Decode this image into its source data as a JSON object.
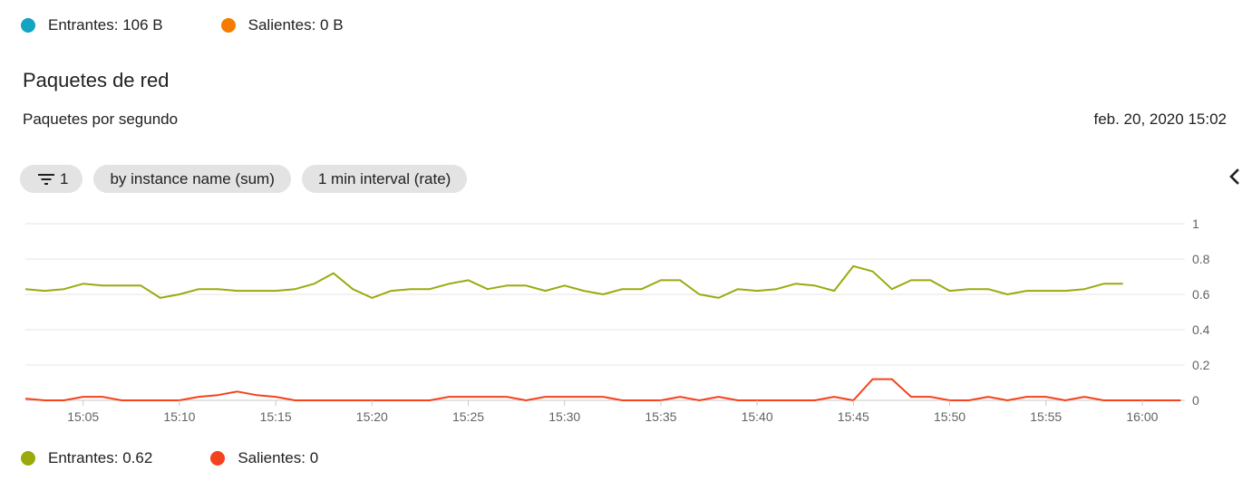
{
  "top_legend": {
    "items": [
      {
        "label": "Entrantes: 106 B",
        "color": "#12a4c1"
      },
      {
        "label": "Salientes: 0 B",
        "color": "#f57c00"
      }
    ]
  },
  "title": "Paquetes de red",
  "subtitle": "Paquetes por segundo",
  "timestamp": "feb. 20, 2020 15:02",
  "chips": {
    "filter_count": "1",
    "group_by": "by instance name (sum)",
    "interval": "1 min interval (rate)"
  },
  "bottom_legend": {
    "items": [
      {
        "label": "Entrantes: 0.62",
        "color": "#9aaa0e"
      },
      {
        "label": "Salientes: 0",
        "color": "#f4421d"
      }
    ]
  },
  "chart_data": {
    "type": "line",
    "title": "Paquetes de red",
    "ylabel": "Paquetes por segundo",
    "x_start_min": 2.0,
    "x_step_min": 1,
    "xlim_min": [
      2,
      62
    ],
    "x_ticks": [
      {
        "min": 5,
        "label": "15:05"
      },
      {
        "min": 10,
        "label": "15:10"
      },
      {
        "min": 15,
        "label": "15:15"
      },
      {
        "min": 20,
        "label": "15:20"
      },
      {
        "min": 25,
        "label": "15:25"
      },
      {
        "min": 30,
        "label": "15:30"
      },
      {
        "min": 35,
        "label": "15:35"
      },
      {
        "min": 40,
        "label": "15:40"
      },
      {
        "min": 45,
        "label": "15:45"
      },
      {
        "min": 50,
        "label": "15:50"
      },
      {
        "min": 55,
        "label": "15:55"
      },
      {
        "min": 60,
        "label": "16:00"
      }
    ],
    "ylim": [
      0,
      1
    ],
    "y_ticks": [
      "0",
      "0.2",
      "0.4",
      "0.6",
      "0.8",
      "1"
    ],
    "series": [
      {
        "name": "Entrantes",
        "color": "#9aaa0e",
        "values": [
          0.63,
          0.62,
          0.63,
          0.66,
          0.65,
          0.65,
          0.65,
          0.58,
          0.6,
          0.63,
          0.63,
          0.62,
          0.62,
          0.62,
          0.63,
          0.66,
          0.72,
          0.63,
          0.58,
          0.62,
          0.63,
          0.63,
          0.66,
          0.68,
          0.63,
          0.65,
          0.65,
          0.62,
          0.65,
          0.62,
          0.6,
          0.63,
          0.63,
          0.68,
          0.68,
          0.6,
          0.58,
          0.63,
          0.62,
          0.63,
          0.66,
          0.65,
          0.62,
          0.76,
          0.73,
          0.63,
          0.68,
          0.68,
          0.62,
          0.63,
          0.63,
          0.6,
          0.62,
          0.62,
          0.62,
          0.63,
          0.66,
          0.66
        ]
      },
      {
        "name": "Salientes",
        "color": "#f4421d",
        "values": [
          0.01,
          0,
          0,
          0.02,
          0.02,
          0,
          0,
          0,
          0,
          0.02,
          0.03,
          0.05,
          0.03,
          0.02,
          0,
          0,
          0,
          0,
          0,
          0,
          0,
          0,
          0.02,
          0.02,
          0.02,
          0.02,
          0,
          0.02,
          0.02,
          0.02,
          0.02,
          0,
          0,
          0,
          0.02,
          0,
          0.02,
          0,
          0,
          0,
          0,
          0,
          0.02,
          0,
          0.12,
          0.12,
          0.02,
          0.02,
          0,
          0,
          0.02,
          0,
          0.02,
          0.02,
          0,
          0.02,
          0,
          0,
          0,
          0,
          0
        ]
      }
    ]
  }
}
